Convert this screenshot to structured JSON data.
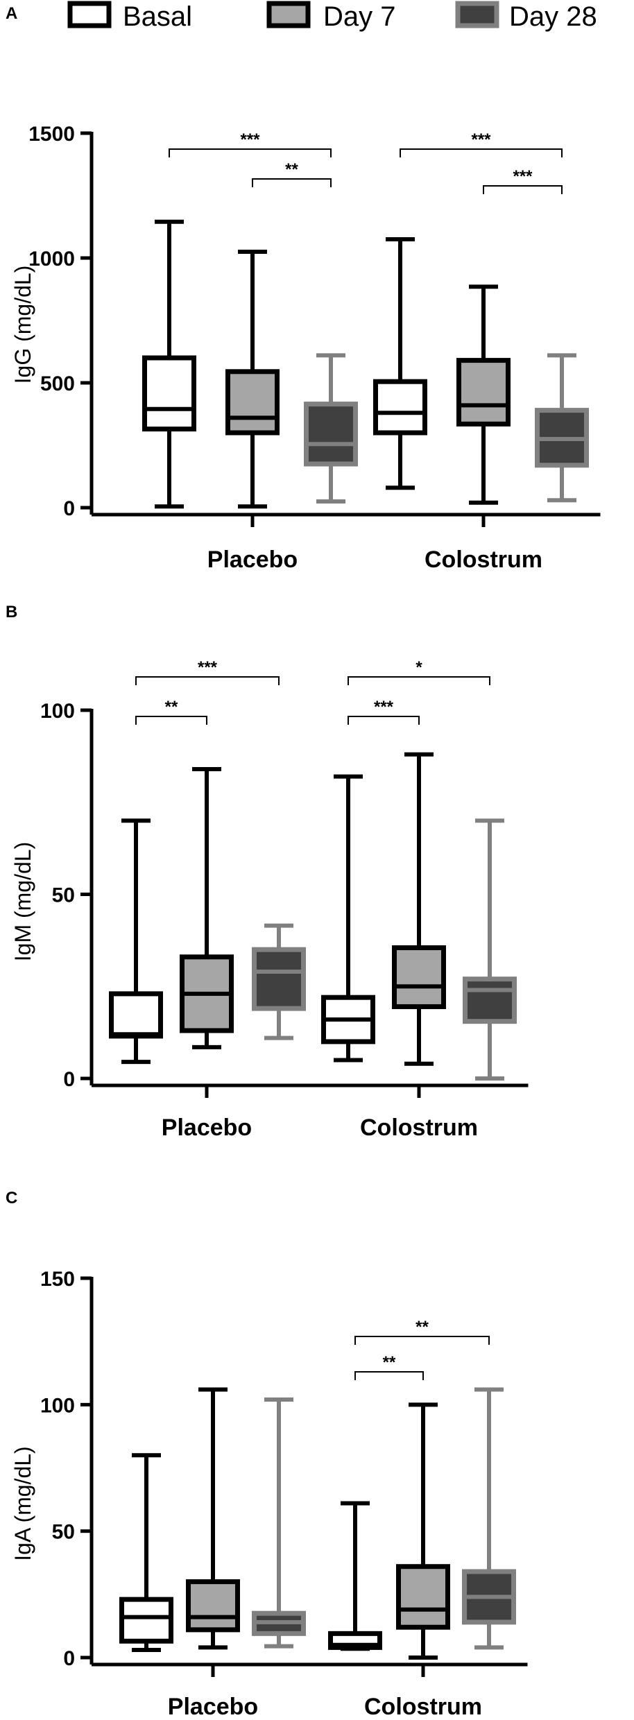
{
  "legend": [
    {
      "label": "Basal",
      "fill": "#ffffff",
      "edge": "#000000"
    },
    {
      "label": "Day 7",
      "fill": "#a6a6a6",
      "edge": "#000000"
    },
    {
      "label": "Day 28",
      "fill": "#404040",
      "edge": "#808080"
    }
  ],
  "chart_data": [
    {
      "type": "box",
      "panel": "A",
      "ylabel": "IgG (mg/dL)",
      "ylim": [
        0,
        1500
      ],
      "yticks": [
        0,
        500,
        1000,
        1500
      ],
      "categories": [
        "Placebo",
        "Colostrum"
      ],
      "series": [
        {
          "name": "Basal",
          "boxes": [
            {
              "min": 5,
              "q1": 315,
              "median": 395,
              "q3": 600,
              "max": 1145
            },
            {
              "min": 80,
              "q1": 300,
              "median": 380,
              "q3": 505,
              "max": 1075
            }
          ]
        },
        {
          "name": "Day 7",
          "boxes": [
            {
              "min": 5,
              "q1": 300,
              "median": 360,
              "q3": 545,
              "max": 1025
            },
            {
              "min": 20,
              "q1": 335,
              "median": 410,
              "q3": 590,
              "max": 885
            }
          ]
        },
        {
          "name": "Day 28",
          "boxes": [
            {
              "min": 25,
              "q1": 175,
              "median": 255,
              "q3": 415,
              "max": 610
            },
            {
              "min": 30,
              "q1": 170,
              "median": 275,
              "q3": 390,
              "max": 610
            }
          ]
        }
      ],
      "significance": [
        {
          "category": "Placebo",
          "from": "Basal",
          "to": "Day 28",
          "label": "***"
        },
        {
          "category": "Placebo",
          "from": "Day 7",
          "to": "Day 28",
          "label": "**"
        },
        {
          "category": "Colostrum",
          "from": "Basal",
          "to": "Day 28",
          "label": "***"
        },
        {
          "category": "Colostrum",
          "from": "Day 7",
          "to": "Day 28",
          "label": "***"
        }
      ]
    },
    {
      "type": "box",
      "panel": "B",
      "ylabel": "IgM (mg/dL)",
      "ylim": [
        0,
        100
      ],
      "yticks": [
        0,
        50,
        100
      ],
      "categories": [
        "Placebo",
        "Colostrum"
      ],
      "series": [
        {
          "name": "Basal",
          "boxes": [
            {
              "min": 4.5,
              "q1": 11.5,
              "median": 12,
              "q3": 23,
              "max": 70
            },
            {
              "min": 5,
              "q1": 10,
              "median": 16,
              "q3": 22,
              "max": 82
            }
          ]
        },
        {
          "name": "Day 7",
          "boxes": [
            {
              "min": 8.5,
              "q1": 13,
              "median": 23,
              "q3": 33,
              "max": 84
            },
            {
              "min": 4,
              "q1": 19.5,
              "median": 25,
              "q3": 35.5,
              "max": 88
            }
          ]
        },
        {
          "name": "Day 28",
          "boxes": [
            {
              "min": 11,
              "q1": 19,
              "median": 29,
              "q3": 35,
              "max": 41.5
            },
            {
              "min": 0,
              "q1": 15.5,
              "median": 24,
              "q3": 27,
              "max": 70
            }
          ]
        }
      ],
      "significance": [
        {
          "category": "Placebo",
          "from": "Basal",
          "to": "Day 28",
          "label": "***"
        },
        {
          "category": "Placebo",
          "from": "Basal",
          "to": "Day 7",
          "label": "**"
        },
        {
          "category": "Colostrum",
          "from": "Basal",
          "to": "Day 28",
          "label": "*"
        },
        {
          "category": "Colostrum",
          "from": "Basal",
          "to": "Day 7",
          "label": "***"
        }
      ]
    },
    {
      "type": "box",
      "panel": "C",
      "ylabel": "IgA (mg/dL)",
      "ylim": [
        0,
        150
      ],
      "yticks": [
        0,
        50,
        100,
        150
      ],
      "categories": [
        "Placebo",
        "Colostrum"
      ],
      "series": [
        {
          "name": "Basal",
          "boxes": [
            {
              "min": 3,
              "q1": 6.5,
              "median": 16,
              "q3": 23,
              "max": 80
            },
            {
              "min": 3.5,
              "q1": 4,
              "median": 5,
              "q3": 9.5,
              "max": 61
            }
          ]
        },
        {
          "name": "Day 7",
          "boxes": [
            {
              "min": 4,
              "q1": 11,
              "median": 16,
              "q3": 30,
              "max": 106
            },
            {
              "min": 0,
              "q1": 12,
              "median": 19,
              "q3": 36,
              "max": 100
            }
          ]
        },
        {
          "name": "Day 28",
          "boxes": [
            {
              "min": 4.5,
              "q1": 9.5,
              "median": 14,
              "q3": 17.5,
              "max": 102
            },
            {
              "min": 4,
              "q1": 14,
              "median": 24,
              "q3": 34,
              "max": 106
            }
          ]
        }
      ],
      "significance": [
        {
          "category": "Colostrum",
          "from": "Basal",
          "to": "Day 28",
          "label": "**"
        },
        {
          "category": "Colostrum",
          "from": "Basal",
          "to": "Day 7",
          "label": "**"
        }
      ]
    }
  ]
}
